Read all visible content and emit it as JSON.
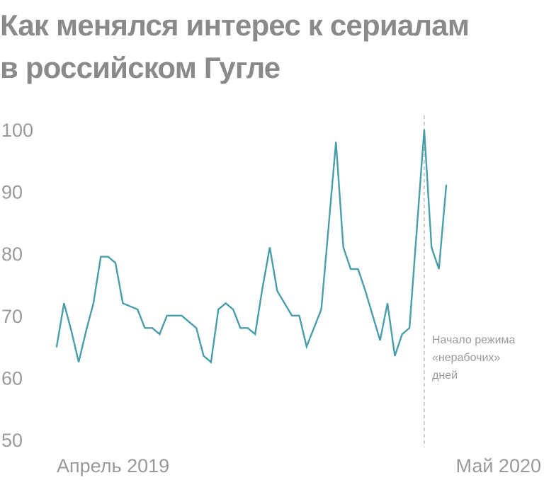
{
  "header": {
    "title_line1": "Как менялся интерес к сериалам",
    "title_line2": "в российском Гугле"
  },
  "colors": {
    "line": "#4a9eaa",
    "text": "#8a8a8a",
    "ticks": "#9a9a9a",
    "marker": "#bdbdbd"
  },
  "chart_data": {
    "type": "line",
    "title": "Как менялся интерес к сериалам в российском Гугле",
    "xlabel": "",
    "ylabel": "",
    "ylim": [
      50,
      100
    ],
    "yticks": [
      100,
      90,
      80,
      70,
      60,
      50
    ],
    "x_tick_labels": [
      "Апрель 2019",
      "Май 2020"
    ],
    "grid": false,
    "series": [
      {
        "values": [
          65,
          72,
          67.5,
          62.5,
          67.5,
          72,
          79.5,
          79.5,
          78.5,
          72,
          71.5,
          71,
          68,
          68,
          67,
          70,
          70,
          70,
          69,
          68,
          63.5,
          62.5,
          71,
          72,
          71,
          68,
          68,
          67,
          74.5,
          81,
          74,
          72,
          70,
          70,
          65,
          68,
          71,
          84.5,
          98,
          81,
          77.5,
          77.5,
          74,
          70,
          66,
          72,
          63.5,
          67,
          68,
          84,
          100,
          81,
          77.5,
          91
        ]
      }
    ],
    "annotation": {
      "label_lines": [
        "Начало режима",
        "«нерабочих»",
        "дней"
      ],
      "point_index": 50
    }
  }
}
